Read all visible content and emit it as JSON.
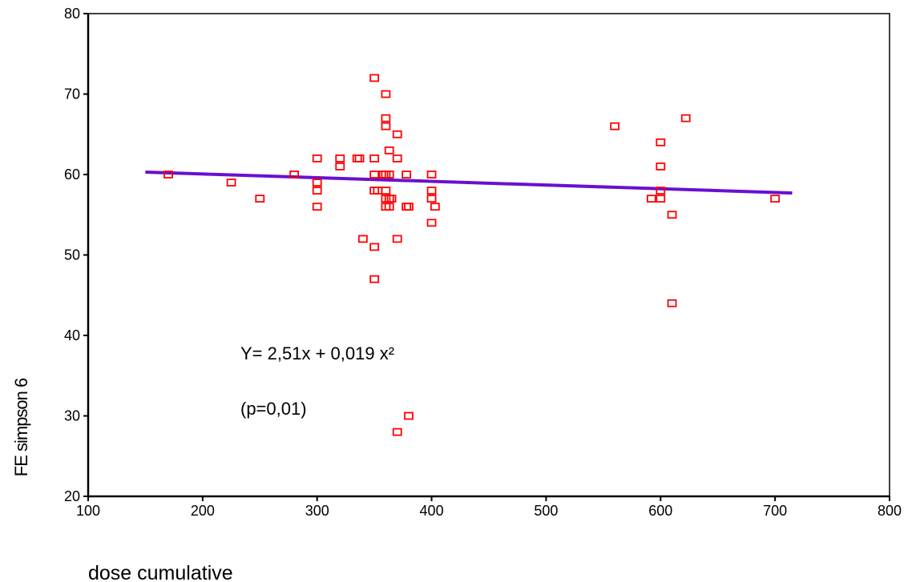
{
  "chart_data": {
    "type": "scatter",
    "xlabel": "dose cumulative",
    "ylabel": "FE simpson 6",
    "xlim": [
      100,
      800
    ],
    "ylim": [
      20,
      80
    ],
    "xticks": [
      100,
      200,
      300,
      400,
      500,
      600,
      700,
      800
    ],
    "yticks": [
      20,
      30,
      40,
      50,
      60,
      70,
      80
    ],
    "grid": false,
    "marker_color": "#ff0000",
    "line_color": "#6a0fd0",
    "annotations": [
      "Y= 2,51x + 0,019 x²",
      "(p=0,01)"
    ],
    "fit_line": {
      "x": [
        150,
        715
      ],
      "y": [
        60.3,
        57.7
      ]
    },
    "points": [
      {
        "x": 170,
        "y": 60
      },
      {
        "x": 225,
        "y": 59
      },
      {
        "x": 250,
        "y": 57
      },
      {
        "x": 280,
        "y": 60
      },
      {
        "x": 300,
        "y": 62
      },
      {
        "x": 300,
        "y": 59
      },
      {
        "x": 300,
        "y": 58
      },
      {
        "x": 300,
        "y": 56
      },
      {
        "x": 320,
        "y": 62
      },
      {
        "x": 320,
        "y": 61
      },
      {
        "x": 335,
        "y": 62
      },
      {
        "x": 337,
        "y": 62
      },
      {
        "x": 340,
        "y": 52
      },
      {
        "x": 350,
        "y": 72
      },
      {
        "x": 350,
        "y": 62
      },
      {
        "x": 350,
        "y": 60
      },
      {
        "x": 350,
        "y": 58
      },
      {
        "x": 353,
        "y": 58
      },
      {
        "x": 350,
        "y": 51
      },
      {
        "x": 350,
        "y": 47
      },
      {
        "x": 358,
        "y": 60
      },
      {
        "x": 360,
        "y": 70
      },
      {
        "x": 360,
        "y": 67
      },
      {
        "x": 360,
        "y": 66
      },
      {
        "x": 360,
        "y": 60
      },
      {
        "x": 360,
        "y": 58
      },
      {
        "x": 360,
        "y": 57
      },
      {
        "x": 360,
        "y": 56
      },
      {
        "x": 363,
        "y": 63
      },
      {
        "x": 363,
        "y": 60
      },
      {
        "x": 363,
        "y": 57
      },
      {
        "x": 363,
        "y": 56
      },
      {
        "x": 365,
        "y": 57
      },
      {
        "x": 370,
        "y": 65
      },
      {
        "x": 370,
        "y": 62
      },
      {
        "x": 370,
        "y": 52
      },
      {
        "x": 370,
        "y": 28
      },
      {
        "x": 378,
        "y": 60
      },
      {
        "x": 378,
        "y": 56
      },
      {
        "x": 380,
        "y": 56
      },
      {
        "x": 380,
        "y": 30
      },
      {
        "x": 400,
        "y": 60
      },
      {
        "x": 400,
        "y": 58
      },
      {
        "x": 400,
        "y": 57
      },
      {
        "x": 400,
        "y": 54
      },
      {
        "x": 403,
        "y": 56
      },
      {
        "x": 560,
        "y": 66
      },
      {
        "x": 592,
        "y": 57
      },
      {
        "x": 600,
        "y": 64
      },
      {
        "x": 600,
        "y": 61
      },
      {
        "x": 600,
        "y": 58
      },
      {
        "x": 600,
        "y": 57
      },
      {
        "x": 610,
        "y": 55
      },
      {
        "x": 610,
        "y": 44
      },
      {
        "x": 622,
        "y": 67
      },
      {
        "x": 700,
        "y": 57
      }
    ]
  }
}
